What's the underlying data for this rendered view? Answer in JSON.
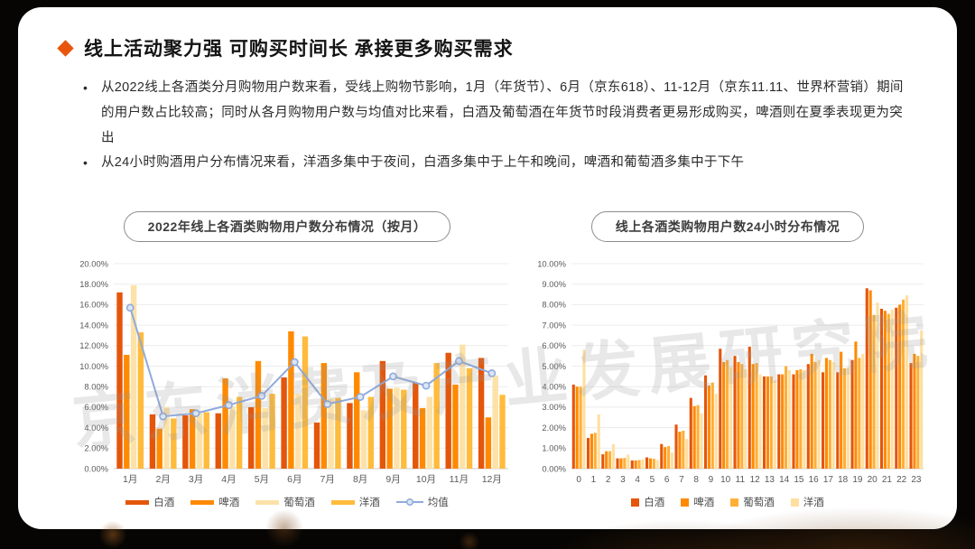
{
  "slide": {
    "title": "线上活动聚力强 可购买时间长 承接更多购买需求",
    "accent_color": "#E8560D",
    "bullets": [
      "从2022线上各酒类分月购物用户数来看，受线上购物节影响，1月（年货节）、6月（京东618）、11-12月（京东11.11、世界杯营销）期间的用户数占比较高；同时从各月购物用户数与均值对比来看，白酒及葡萄酒在年货节时段消费者更易形成购买，啤酒则在夏季表现更为突出",
      "从24小时购酒用户分布情况来看，洋酒多集中于夜间，白酒多集中于上午和晚间，啤酒和葡萄酒多集中于下午"
    ],
    "watermark": "京东消费及产业发展研究院"
  },
  "chart_data": [
    {
      "type": "bar",
      "title": "2022年线上各酒类购物用户数分布情况（按月）",
      "categories": [
        "1月",
        "2月",
        "3月",
        "4月",
        "5月",
        "6月",
        "7月",
        "8月",
        "9月",
        "10月",
        "11月",
        "12月"
      ],
      "series": [
        {
          "name": "白酒",
          "color": "#E4560A",
          "values": [
            17.2,
            5.3,
            5.2,
            5.4,
            6.0,
            8.9,
            4.5,
            6.4,
            10.5,
            8.4,
            11.3,
            10.8
          ]
        },
        {
          "name": "啤酒",
          "color": "#FF8A00",
          "values": [
            11.1,
            3.9,
            5.8,
            8.8,
            10.5,
            13.4,
            10.3,
            9.4,
            7.8,
            5.9,
            8.2,
            5.0
          ]
        },
        {
          "name": "葡萄酒",
          "color": "#FCE2A8",
          "values": [
            17.9,
            6.0,
            5.4,
            6.1,
            5.9,
            7.3,
            6.8,
            5.7,
            7.9,
            7.0,
            12.1,
            9.1
          ]
        },
        {
          "name": "洋酒",
          "color": "#FFBB3C",
          "values": [
            13.3,
            4.9,
            5.5,
            7.0,
            7.3,
            12.9,
            6.9,
            7.0,
            7.7,
            10.3,
            9.8,
            7.2
          ]
        }
      ],
      "line_series": {
        "name": "均值",
        "color": "#8FAADC",
        "marker_fill": "#DCE6F5",
        "values": [
          15.7,
          5.1,
          5.4,
          6.2,
          7.1,
          10.4,
          6.3,
          7.0,
          9.0,
          8.1,
          10.5,
          9.3
        ]
      },
      "ylim": [
        0,
        20
      ],
      "ystep": 2,
      "y_format": "percent2",
      "grid": true,
      "legend_position": "bottom",
      "legend_style": "dash"
    },
    {
      "type": "bar",
      "title": "线上各酒类购物用户数24小时分布情况",
      "categories": [
        "0",
        "1",
        "2",
        "3",
        "4",
        "5",
        "6",
        "7",
        "8",
        "9",
        "10",
        "11",
        "12",
        "13",
        "14",
        "15",
        "16",
        "17",
        "18",
        "19",
        "20",
        "21",
        "22",
        "23"
      ],
      "series": [
        {
          "name": "白酒",
          "color": "#E4560A",
          "values": [
            4.1,
            1.5,
            0.7,
            0.5,
            0.4,
            0.55,
            1.2,
            2.15,
            3.45,
            4.55,
            5.85,
            5.5,
            5.95,
            4.5,
            4.6,
            4.6,
            5.1,
            4.7,
            4.7,
            5.3,
            8.8,
            7.8,
            7.85,
            5.15
          ]
        },
        {
          "name": "啤酒",
          "color": "#FF8A00",
          "values": [
            4.0,
            1.7,
            0.85,
            0.5,
            0.4,
            0.5,
            1.05,
            1.8,
            3.05,
            4.05,
            5.2,
            5.2,
            5.1,
            4.5,
            4.6,
            4.8,
            5.6,
            5.4,
            5.7,
            6.2,
            8.7,
            7.7,
            8.0,
            5.6
          ]
        },
        {
          "name": "葡萄酒",
          "color": "#FFAF37",
          "values": [
            4.0,
            1.75,
            0.85,
            0.52,
            0.42,
            0.48,
            1.1,
            1.85,
            3.1,
            4.2,
            5.3,
            5.1,
            5.15,
            4.5,
            5.0,
            4.85,
            5.2,
            5.3,
            4.9,
            5.4,
            7.5,
            7.55,
            8.25,
            5.5
          ]
        },
        {
          "name": "洋酒",
          "color": "#FFDFA0",
          "values": [
            5.8,
            2.65,
            1.2,
            0.68,
            0.45,
            0.42,
            0.78,
            1.45,
            2.7,
            3.65,
            4.95,
            4.85,
            4.6,
            4.3,
            4.8,
            4.8,
            5.3,
            5.2,
            4.95,
            5.6,
            8.1,
            7.75,
            8.45,
            6.75
          ]
        }
      ],
      "ylim": [
        0,
        10
      ],
      "ystep": 1,
      "y_format": "percent2",
      "grid": true,
      "legend_position": "bottom",
      "legend_style": "square"
    }
  ]
}
